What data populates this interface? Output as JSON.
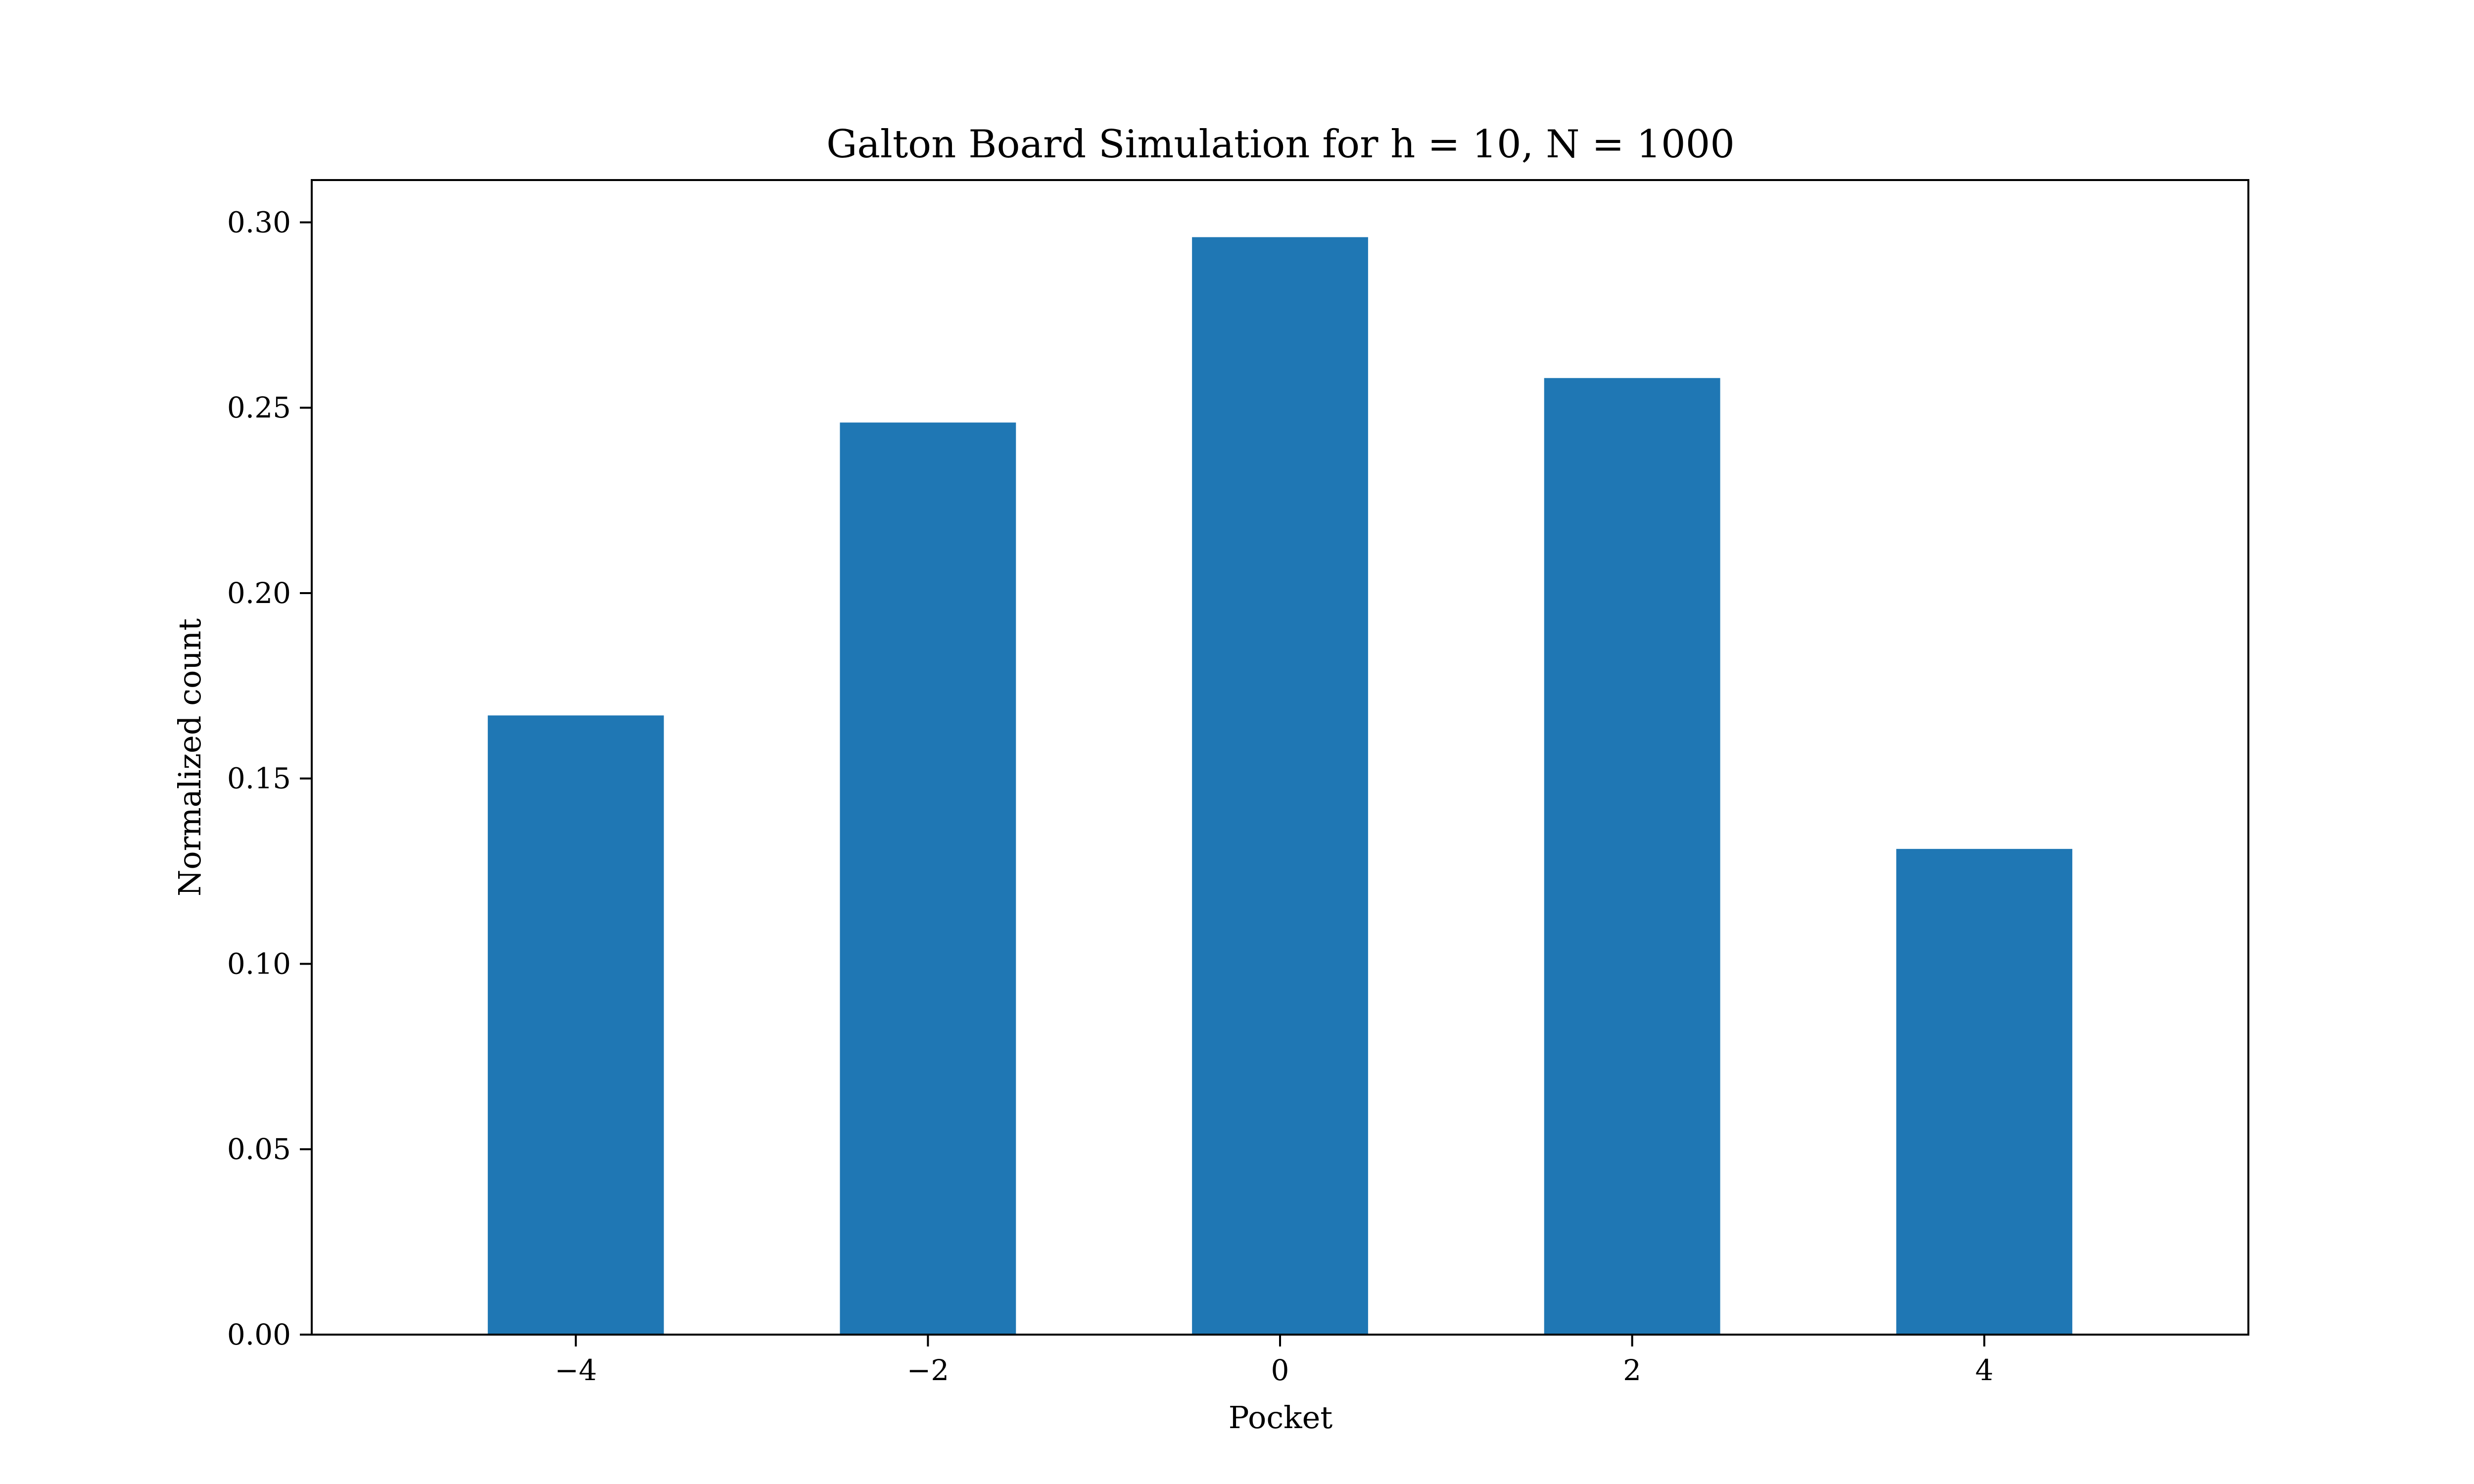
{
  "chart_data": {
    "type": "bar",
    "title": "Galton Board Simulation for h = 10, N = 1000",
    "xlabel": "Pocket",
    "ylabel": "Normalized count",
    "categories": [
      -4,
      -2,
      0,
      2,
      4
    ],
    "values": [
      0.167,
      0.246,
      0.296,
      0.258,
      0.131
    ],
    "bar_width": 1,
    "xlim": [
      -5.5,
      5.5
    ],
    "ylim": [
      0,
      0.3114
    ],
    "xticks": [
      -4,
      -2,
      0,
      2,
      4
    ],
    "xtick_labels": [
      "−4",
      "−2",
      "0",
      "2",
      "4"
    ],
    "yticks": [
      0,
      0.05,
      0.1,
      0.15,
      0.2,
      0.25,
      0.3
    ],
    "ytick_labels": [
      "0.00",
      "0.05",
      "0.10",
      "0.15",
      "0.20",
      "0.25",
      "0.30"
    ],
    "bar_color": "#1f77b4",
    "grid": false,
    "legend": null
  }
}
